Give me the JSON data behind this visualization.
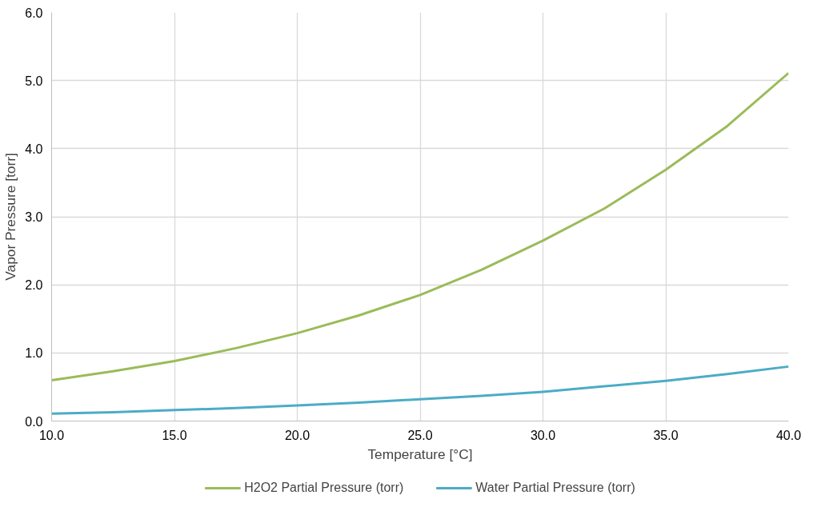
{
  "chart_data": {
    "type": "line",
    "xlabel": "Temperature [°C]",
    "ylabel": "Vapor Pressure [torr]",
    "x": [
      10,
      12.5,
      15,
      17.5,
      20,
      22.5,
      25,
      27.5,
      30,
      32.5,
      35,
      37.5,
      40
    ],
    "series": [
      {
        "name": "H2O2 Partial Pressure (torr)",
        "color": "#9bbb59",
        "values": [
          0.6,
          0.73,
          0.88,
          1.07,
          1.29,
          1.55,
          1.85,
          2.22,
          2.65,
          3.12,
          3.69,
          4.33,
          5.11
        ]
      },
      {
        "name": "Water Partial Pressure (torr)",
        "color": "#4bacc6",
        "values": [
          0.11,
          0.13,
          0.16,
          0.19,
          0.23,
          0.27,
          0.32,
          0.37,
          0.43,
          0.51,
          0.59,
          0.69,
          0.8
        ]
      }
    ],
    "xlim": [
      10,
      40
    ],
    "ylim": [
      0,
      6
    ],
    "xticks": [
      {
        "value": 10,
        "label": "10.0"
      },
      {
        "value": 15,
        "label": "15.0"
      },
      {
        "value": 20,
        "label": "20.0"
      },
      {
        "value": 25,
        "label": "25.0"
      },
      {
        "value": 30,
        "label": "30.0"
      },
      {
        "value": 35,
        "label": "35.0"
      },
      {
        "value": 40,
        "label": "40.0"
      }
    ],
    "yticks": [
      {
        "value": 0,
        "label": "0.0"
      },
      {
        "value": 1,
        "label": "1.0"
      },
      {
        "value": 2,
        "label": "2.0"
      },
      {
        "value": 3,
        "label": "3.0"
      },
      {
        "value": 4,
        "label": "4.0"
      },
      {
        "value": 5,
        "label": "5.0"
      },
      {
        "value": 6,
        "label": "6.0"
      }
    ],
    "grid": true,
    "legend": "bottom",
    "marker": "none",
    "line_style": "solid"
  }
}
